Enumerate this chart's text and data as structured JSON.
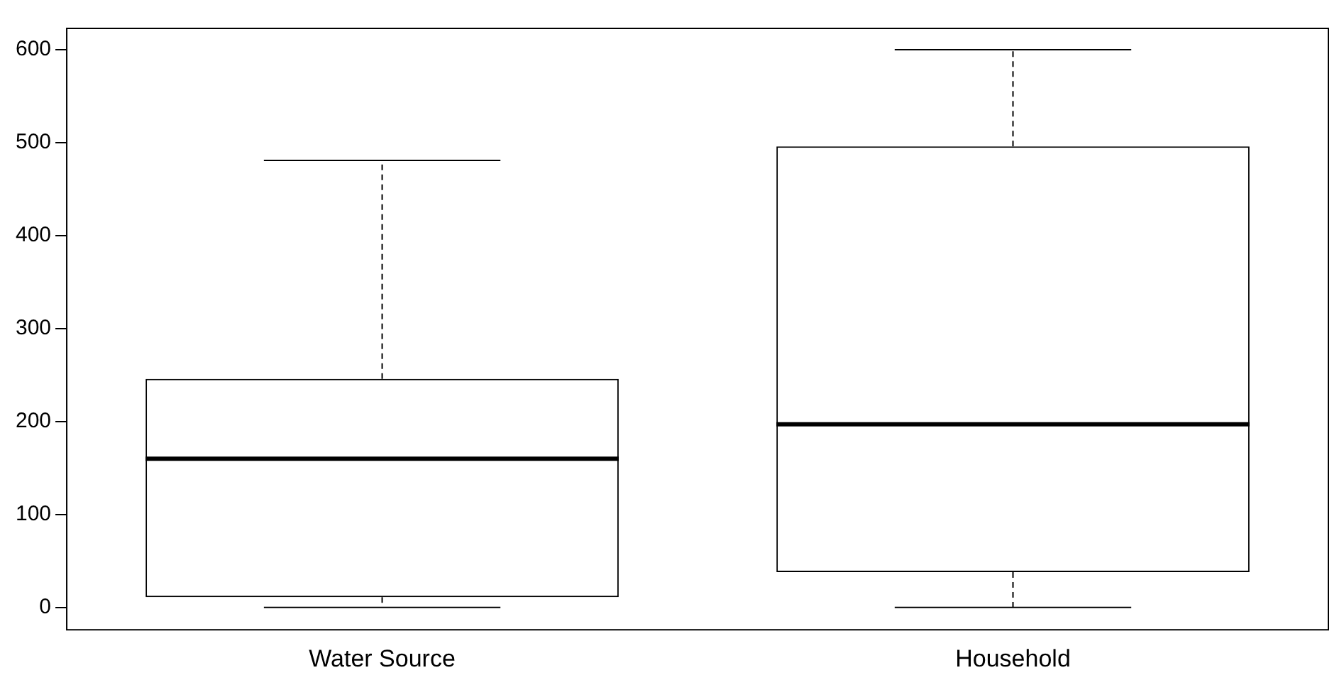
{
  "chart_data": {
    "type": "box",
    "categories": [
      "Water Source",
      "Household"
    ],
    "boxes": [
      {
        "low": 0,
        "q1": 11,
        "median": 160,
        "q3": 246,
        "high": 481
      },
      {
        "low": 0,
        "q1": 38,
        "median": 197,
        "q3": 496,
        "high": 600
      }
    ],
    "color": "#000000",
    "ylim": [
      -24,
      623
    ],
    "yticks": [
      0,
      100,
      200,
      300,
      400,
      500,
      600
    ],
    "grid": false,
    "legend": false
  }
}
